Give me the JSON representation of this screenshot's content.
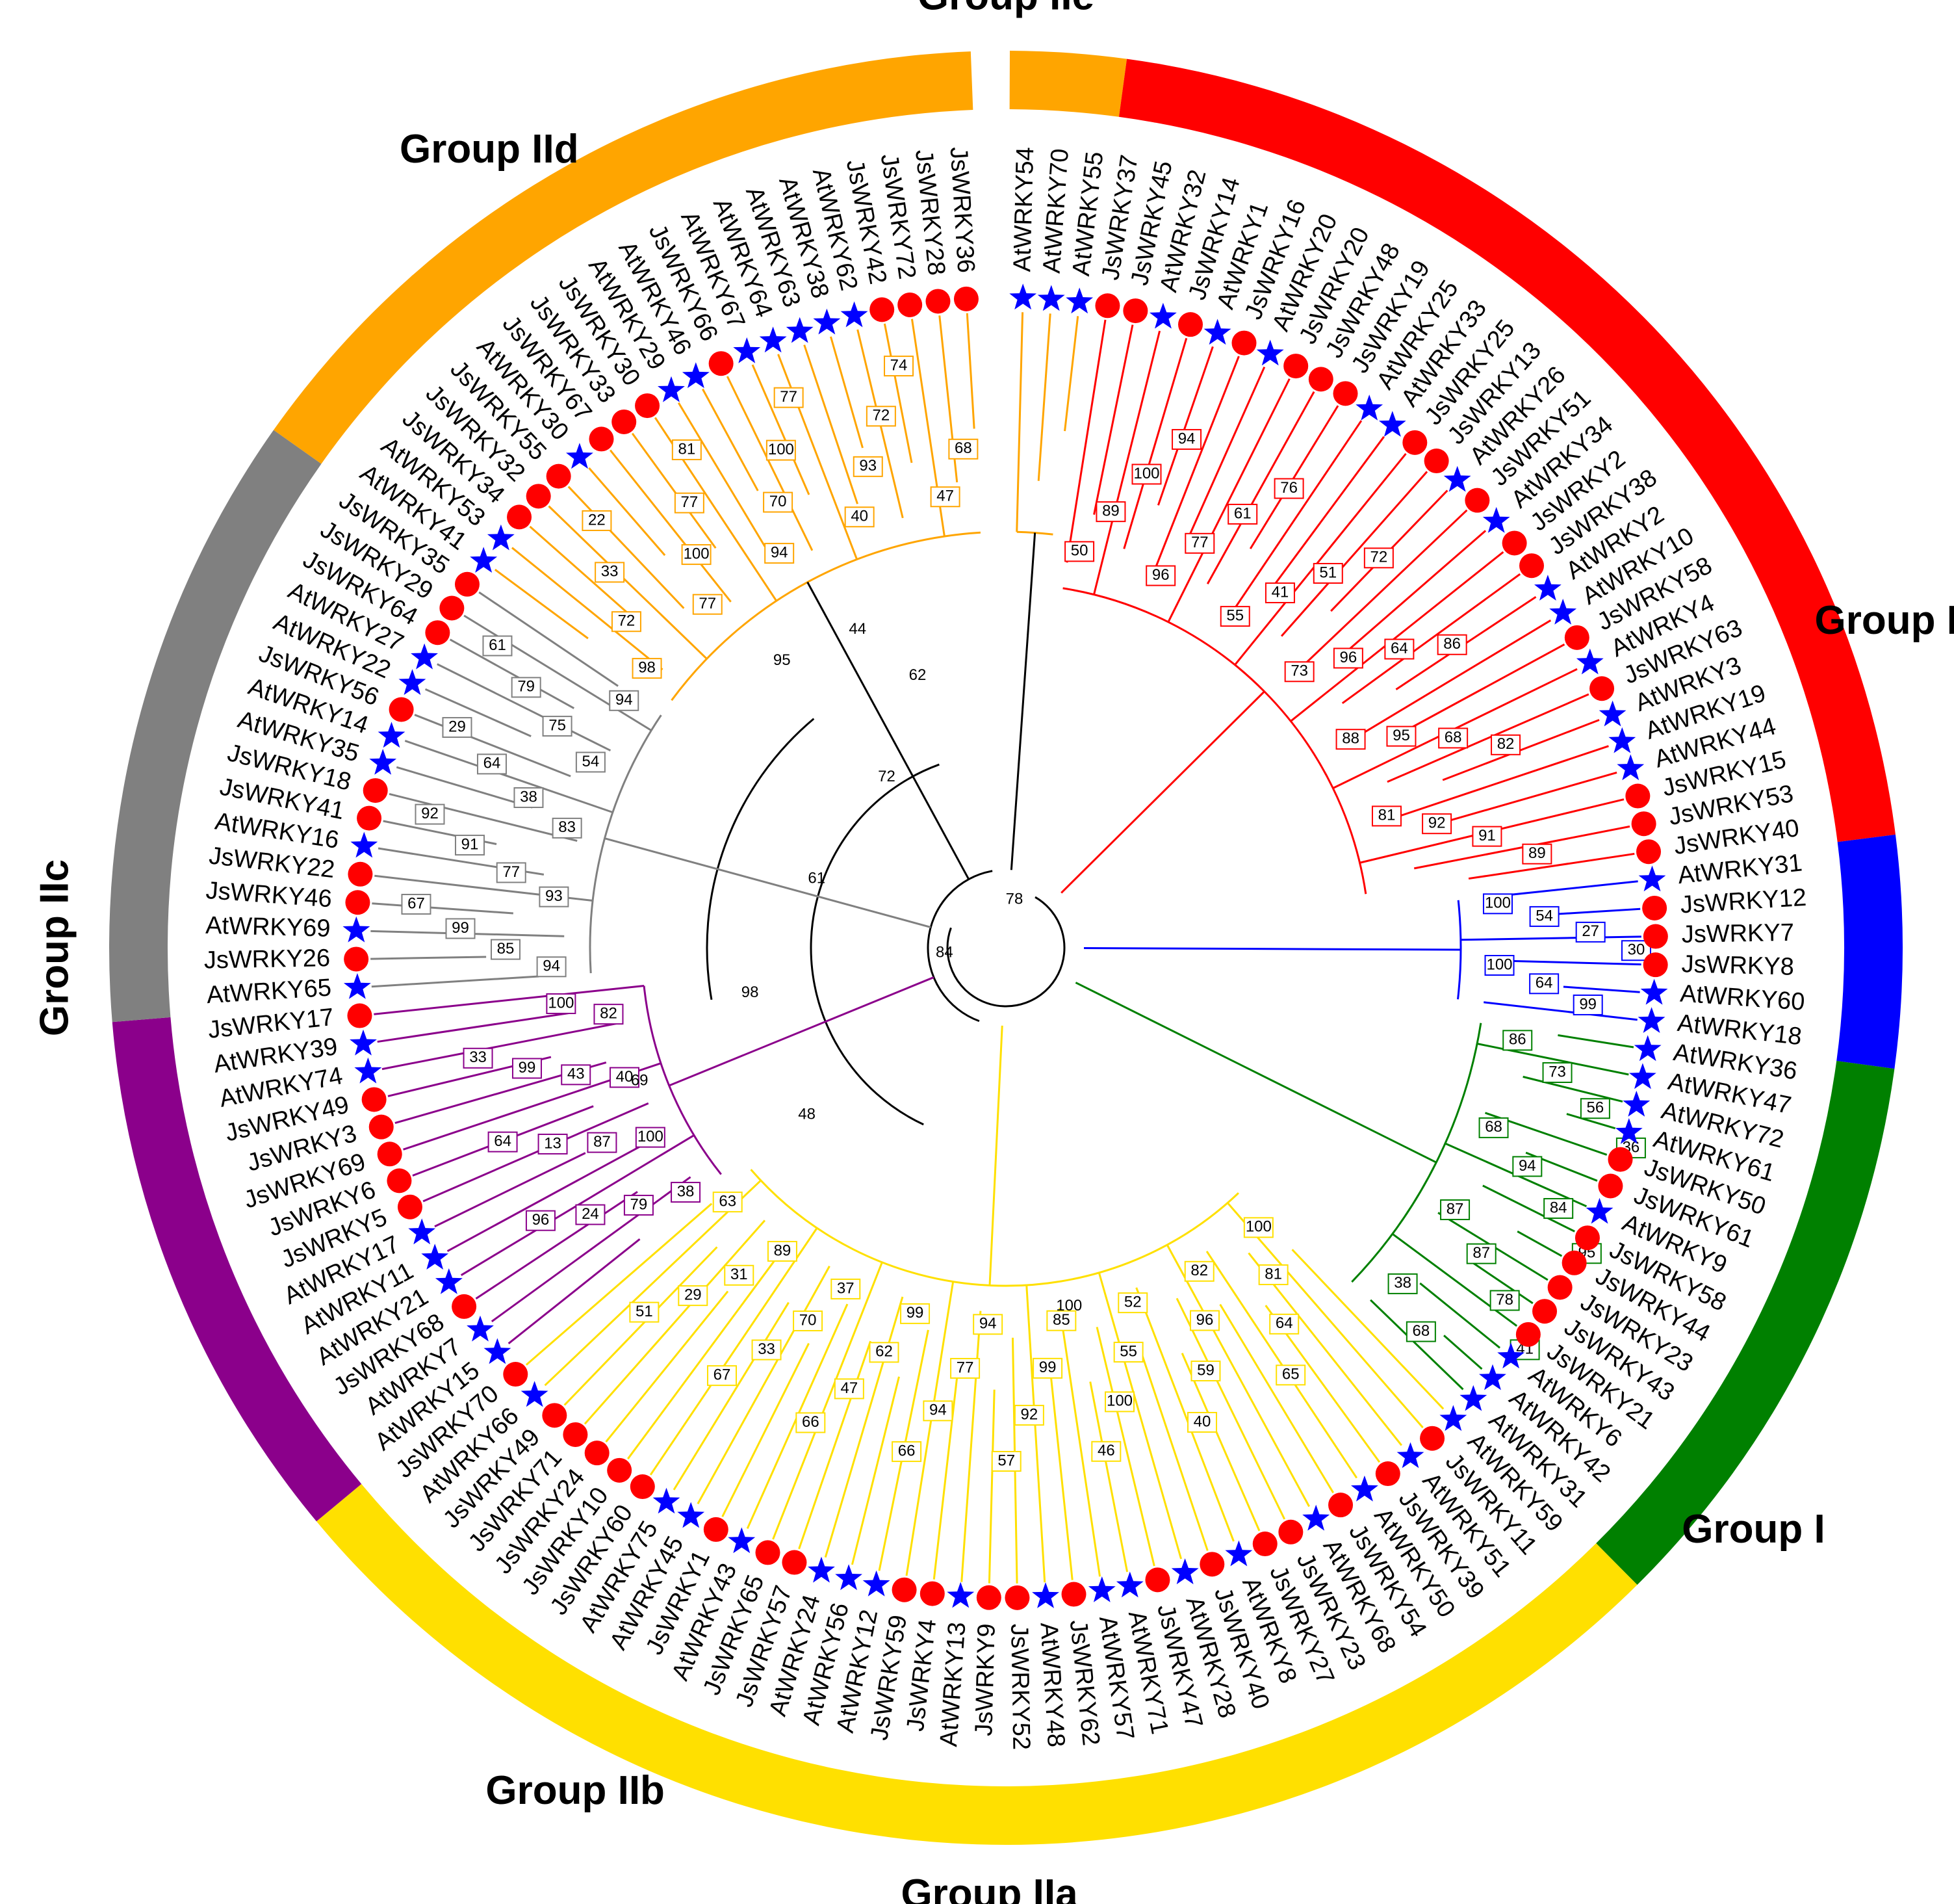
{
  "colors": {
    "I": "#ff0000",
    "IIa": "#0000ff",
    "IIb": "#008000",
    "IIc": "#ffe000",
    "IId": "#8b008b",
    "IIe": "#808080",
    "III": "#ffa500",
    "backbone": "#000000",
    "js_marker": "#ff0000",
    "at_marker": "#0000ff"
  },
  "groups": [
    {
      "id": "IIe",
      "label": "Group IIe"
    },
    {
      "id": "III",
      "label": "Group III"
    },
    {
      "id": "I",
      "label": "Group I"
    },
    {
      "id": "IIa",
      "label": "Group IIa"
    },
    {
      "id": "IIb",
      "label": "Group IIb"
    },
    {
      "id": "IIc",
      "label": "Group IIc"
    },
    {
      "id": "IId",
      "label": "Group IId"
    }
  ],
  "leaves": [
    {
      "name": "AtWRKY54",
      "group": "III"
    },
    {
      "name": "AtWRKY70",
      "group": "III"
    },
    {
      "name": "AtWRKY55",
      "group": "III"
    },
    {
      "name": "JsWRKY37",
      "group": "I"
    },
    {
      "name": "JsWRKY45",
      "group": "I"
    },
    {
      "name": "AtWRKY32",
      "group": "I"
    },
    {
      "name": "JsWRKY14",
      "group": "I"
    },
    {
      "name": "AtWRKY1",
      "group": "I"
    },
    {
      "name": "JsWRKY16",
      "group": "I"
    },
    {
      "name": "AtWRKY20",
      "group": "I"
    },
    {
      "name": "JsWRKY20",
      "group": "I"
    },
    {
      "name": "JsWRKY48",
      "group": "I"
    },
    {
      "name": "JsWRKY19",
      "group": "I"
    },
    {
      "name": "AtWRKY25",
      "group": "I"
    },
    {
      "name": "AtWRKY33",
      "group": "I"
    },
    {
      "name": "JsWRKY25",
      "group": "I"
    },
    {
      "name": "JsWRKY13",
      "group": "I"
    },
    {
      "name": "AtWRKY26",
      "group": "I"
    },
    {
      "name": "JsWRKY51",
      "group": "I"
    },
    {
      "name": "AtWRKY34",
      "group": "I"
    },
    {
      "name": "JsWRKY2",
      "group": "I"
    },
    {
      "name": "JsWRKY38",
      "group": "I"
    },
    {
      "name": "AtWRKY2",
      "group": "I"
    },
    {
      "name": "AtWRKY10",
      "group": "I"
    },
    {
      "name": "JsWRKY58",
      "group": "I"
    },
    {
      "name": "AtWRKY4",
      "group": "I"
    },
    {
      "name": "JsWRKY63",
      "group": "I"
    },
    {
      "name": "AtWRKY3",
      "group": "I"
    },
    {
      "name": "AtWRKY19",
      "group": "I"
    },
    {
      "name": "AtWRKY44",
      "group": "I"
    },
    {
      "name": "JsWRKY15",
      "group": "I"
    },
    {
      "name": "JsWRKY53",
      "group": "I"
    },
    {
      "name": "JsWRKY40",
      "group": "I"
    },
    {
      "name": "AtWRKY31",
      "group": "IIa"
    },
    {
      "name": "JsWRKY12",
      "group": "IIa"
    },
    {
      "name": "JsWRKY7",
      "group": "IIa"
    },
    {
      "name": "JsWRKY8",
      "group": "IIa"
    },
    {
      "name": "AtWRKY60",
      "group": "IIa"
    },
    {
      "name": "AtWRKY18",
      "group": "IIa"
    },
    {
      "name": "AtWRKY36",
      "group": "IIb"
    },
    {
      "name": "AtWRKY47",
      "group": "IIb"
    },
    {
      "name": "AtWRKY72",
      "group": "IIb"
    },
    {
      "name": "AtWRKY61",
      "group": "IIb"
    },
    {
      "name": "JsWRKY50",
      "group": "IIb"
    },
    {
      "name": "JsWRKY61",
      "group": "IIb"
    },
    {
      "name": "AtWRKY9",
      "group": "IIb"
    },
    {
      "name": "JsWRKY58",
      "group": "IIb"
    },
    {
      "name": "JsWRKY44",
      "group": "IIb"
    },
    {
      "name": "JsWRKY23",
      "group": "IIb"
    },
    {
      "name": "JsWRKY43",
      "group": "IIb"
    },
    {
      "name": "JsWRKY21",
      "group": "IIb"
    },
    {
      "name": "AtWRKY6",
      "group": "IIb"
    },
    {
      "name": "AtWRKY42",
      "group": "IIb"
    },
    {
      "name": "AtWRKY31",
      "group": "IIb"
    },
    {
      "name": "AtWRKY59",
      "group": "IIc"
    },
    {
      "name": "JsWRKY11",
      "group": "IIc"
    },
    {
      "name": "AtWRKY51",
      "group": "IIc"
    },
    {
      "name": "JsWRKY39",
      "group": "IIc"
    },
    {
      "name": "AtWRKY50",
      "group": "IIc"
    },
    {
      "name": "JsWRKY54",
      "group": "IIc"
    },
    {
      "name": "AtWRKY68",
      "group": "IIc"
    },
    {
      "name": "JsWRKY23",
      "group": "IIc"
    },
    {
      "name": "JsWRKY27",
      "group": "IIc"
    },
    {
      "name": "AtWRKY8",
      "group": "IIc"
    },
    {
      "name": "JsWRKY40",
      "group": "IIc"
    },
    {
      "name": "AtWRKY28",
      "group": "IIc"
    },
    {
      "name": "JsWRKY47",
      "group": "IIc"
    },
    {
      "name": "AtWRKY71",
      "group": "IIc"
    },
    {
      "name": "AtWRKY57",
      "group": "IIc"
    },
    {
      "name": "JsWRKY62",
      "group": "IIc"
    },
    {
      "name": "AtWRKY48",
      "group": "IIc"
    },
    {
      "name": "JsWRKY52",
      "group": "IIc"
    },
    {
      "name": "JsWRKY9",
      "group": "IIc"
    },
    {
      "name": "AtWRKY13",
      "group": "IIc"
    },
    {
      "name": "JsWRKY4",
      "group": "IIc"
    },
    {
      "name": "JsWRKY59",
      "group": "IIc"
    },
    {
      "name": "AtWRKY12",
      "group": "IIc"
    },
    {
      "name": "AtWRKY56",
      "group": "IIc"
    },
    {
      "name": "AtWRKY24",
      "group": "IIc"
    },
    {
      "name": "JsWRKY57",
      "group": "IIc"
    },
    {
      "name": "JsWRKY65",
      "group": "IIc"
    },
    {
      "name": "AtWRKY43",
      "group": "IIc"
    },
    {
      "name": "JsWRKY1",
      "group": "IIc"
    },
    {
      "name": "AtWRKY45",
      "group": "IIc"
    },
    {
      "name": "AtWRKY75",
      "group": "IIc"
    },
    {
      "name": "JsWRKY60",
      "group": "IIc"
    },
    {
      "name": "JsWRKY10",
      "group": "IIc"
    },
    {
      "name": "JsWRKY24",
      "group": "IIc"
    },
    {
      "name": "JsWRKY71",
      "group": "IIc"
    },
    {
      "name": "JsWRKY49",
      "group": "IIc"
    },
    {
      "name": "AtWRKY66",
      "group": "IIc"
    },
    {
      "name": "JsWRKY70",
      "group": "IIc"
    },
    {
      "name": "AtWRKY15",
      "group": "IId"
    },
    {
      "name": "AtWRKY7",
      "group": "IId"
    },
    {
      "name": "JsWRKY68",
      "group": "IId"
    },
    {
      "name": "AtWRKY21",
      "group": "IId"
    },
    {
      "name": "AtWRKY11",
      "group": "IId"
    },
    {
      "name": "AtWRKY17",
      "group": "IId"
    },
    {
      "name": "JsWRKY5",
      "group": "IId"
    },
    {
      "name": "JsWRKY6",
      "group": "IId"
    },
    {
      "name": "JsWRKY69",
      "group": "IId"
    },
    {
      "name": "JsWRKY3",
      "group": "IId"
    },
    {
      "name": "JsWRKY49",
      "group": "IId"
    },
    {
      "name": "AtWRKY74",
      "group": "IId"
    },
    {
      "name": "AtWRKY39",
      "group": "IId"
    },
    {
      "name": "JsWRKY17",
      "group": "IId"
    },
    {
      "name": "AtWRKY65",
      "group": "IIe"
    },
    {
      "name": "JsWRKY26",
      "group": "IIe"
    },
    {
      "name": "AtWRKY69",
      "group": "IIe"
    },
    {
      "name": "JsWRKY46",
      "group": "IIe"
    },
    {
      "name": "JsWRKY22",
      "group": "IIe"
    },
    {
      "name": "AtWRKY16",
      "group": "IIe"
    },
    {
      "name": "JsWRKY41",
      "group": "IIe"
    },
    {
      "name": "JsWRKY18",
      "group": "IIe"
    },
    {
      "name": "AtWRKY35",
      "group": "IIe"
    },
    {
      "name": "AtWRKY14",
      "group": "IIe"
    },
    {
      "name": "JsWRKY56",
      "group": "IIe"
    },
    {
      "name": "AtWRKY22",
      "group": "IIe"
    },
    {
      "name": "AtWRKY27",
      "group": "IIe"
    },
    {
      "name": "JsWRKY64",
      "group": "IIe"
    },
    {
      "name": "JsWRKY29",
      "group": "IIe"
    },
    {
      "name": "JsWRKY35",
      "group": "IIe"
    },
    {
      "name": "AtWRKY41",
      "group": "III"
    },
    {
      "name": "AtWRKY53",
      "group": "III"
    },
    {
      "name": "JsWRKY34",
      "group": "III"
    },
    {
      "name": "JsWRKY32",
      "group": "III"
    },
    {
      "name": "JsWRKY55",
      "group": "III"
    },
    {
      "name": "AtWRKY30",
      "group": "III"
    },
    {
      "name": "JsWRKY67",
      "group": "III"
    },
    {
      "name": "JsWRKY33",
      "group": "III"
    },
    {
      "name": "JsWRKY30",
      "group": "III"
    },
    {
      "name": "AtWRKY29",
      "group": "III"
    },
    {
      "name": "AtWRKY46",
      "group": "III"
    },
    {
      "name": "JsWRKY66",
      "group": "III"
    },
    {
      "name": "AtWRKY67",
      "group": "III"
    },
    {
      "name": "AtWRKY64",
      "group": "III"
    },
    {
      "name": "AtWRKY63",
      "group": "III"
    },
    {
      "name": "AtWRKY38",
      "group": "III"
    },
    {
      "name": "AtWRKY62",
      "group": "III"
    },
    {
      "name": "JsWRKY42",
      "group": "III"
    },
    {
      "name": "JsWRKY72",
      "group": "III"
    },
    {
      "name": "JsWRKY28",
      "group": "III"
    },
    {
      "name": "JsWRKY36",
      "group": "III"
    }
  ],
  "backbone_support": [
    "78",
    "84",
    "61",
    "72",
    "62",
    "48",
    "98",
    "95",
    "44",
    "100",
    "69"
  ],
  "clade_support": {
    "I": [
      "50",
      "89",
      "100",
      "94",
      "96",
      "77",
      "61",
      "76",
      "55",
      "41",
      "51",
      "72",
      "73",
      "96",
      "64",
      "86",
      "88",
      "95",
      "68",
      "82",
      "81",
      "92",
      "91",
      "89"
    ],
    "IIa": [
      "100",
      "54",
      "27",
      "30",
      "100",
      "64",
      "99"
    ],
    "IIb": [
      "86",
      "73",
      "56",
      "36",
      "68",
      "94",
      "84",
      "95",
      "87",
      "87",
      "78",
      "41",
      "38",
      "68"
    ],
    "IIc": [
      "100",
      "81",
      "64",
      "65",
      "82",
      "96",
      "59",
      "40",
      "52",
      "55",
      "100",
      "46",
      "85",
      "99",
      "92",
      "57",
      "94",
      "77",
      "94",
      "66",
      "99",
      "62",
      "47",
      "66",
      "37",
      "70",
      "33",
      "67",
      "89",
      "31",
      "29",
      "51",
      "63"
    ],
    "IId": [
      "38",
      "79",
      "24",
      "96",
      "100",
      "87",
      "13",
      "64",
      "40",
      "43",
      "99",
      "33",
      "82",
      "100"
    ],
    "IIe": [
      "94",
      "85",
      "99",
      "67",
      "93",
      "77",
      "91",
      "92",
      "83",
      "38",
      "64",
      "29",
      "54",
      "75",
      "79",
      "61",
      "94"
    ],
    "III": [
      "98",
      "72",
      "33",
      "22",
      "77",
      "100",
      "77",
      "81",
      "94",
      "70",
      "100",
      "77",
      "40",
      "93",
      "72",
      "74",
      "47",
      "68"
    ]
  },
  "legend": {
    "js_symbol": "circle",
    "at_symbol": "star"
  }
}
